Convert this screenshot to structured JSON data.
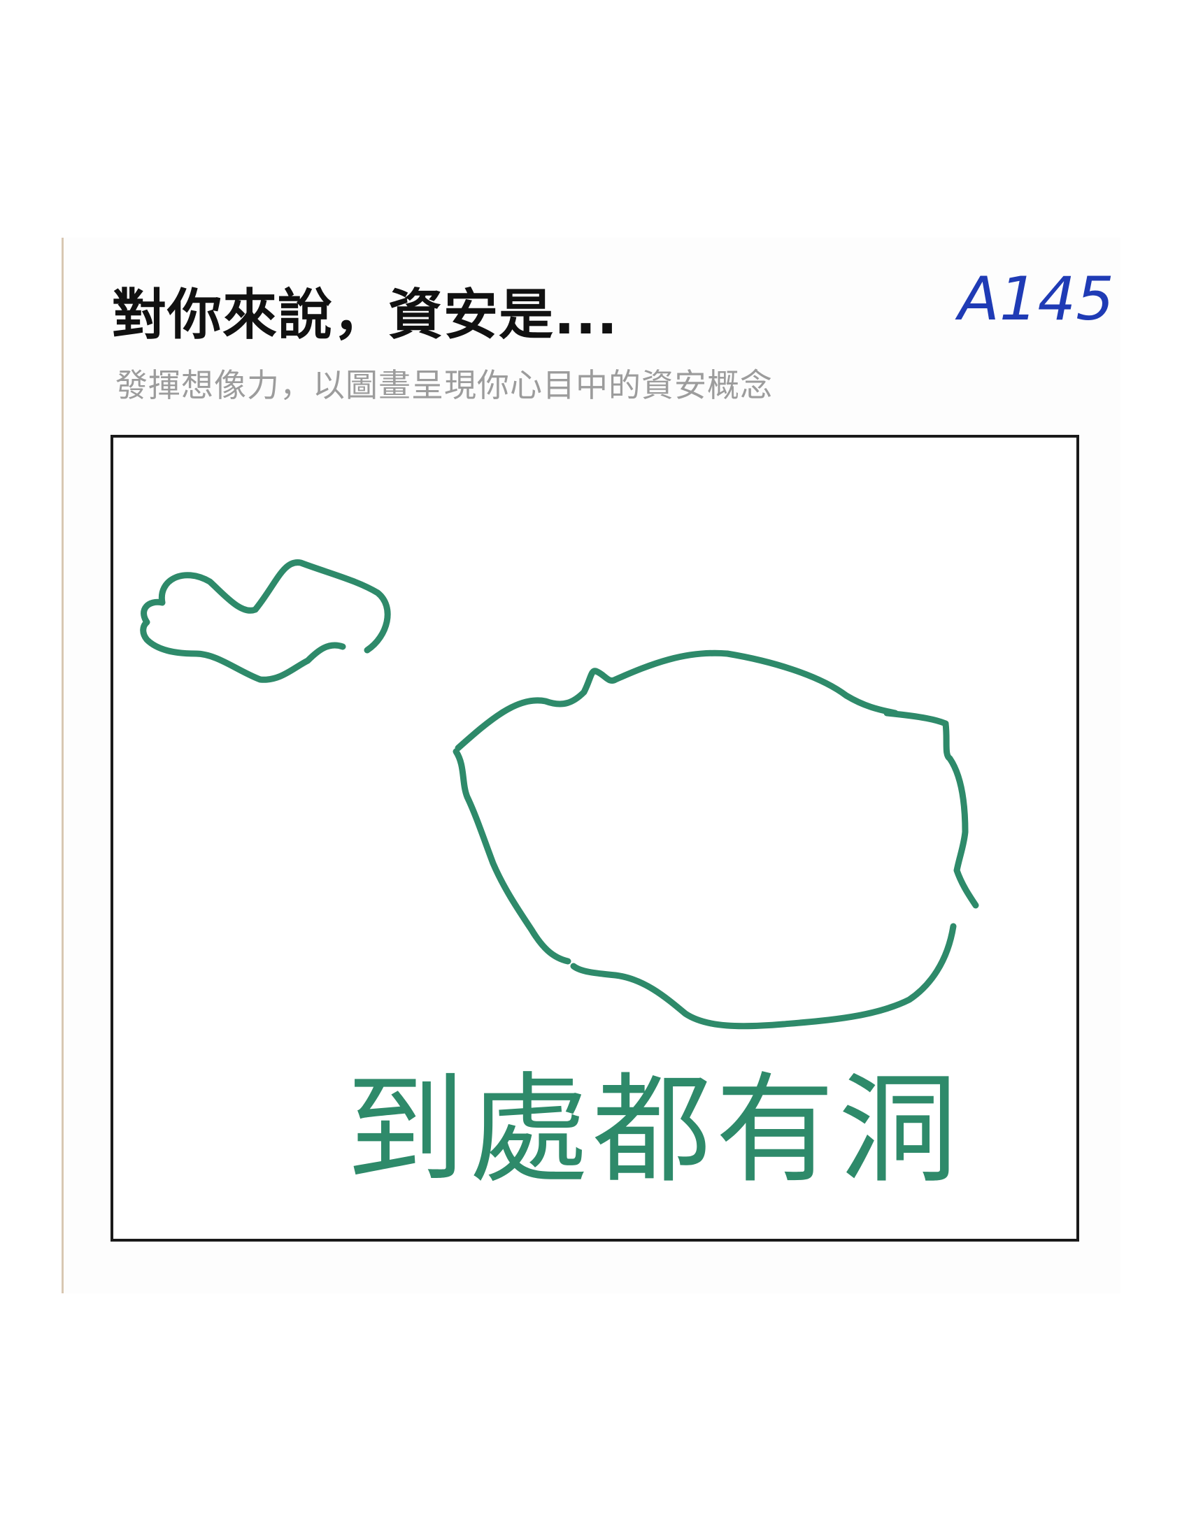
{
  "card": {
    "title": "對你來說，資安是...",
    "subtitle": "發揮想像力，以圖畫呈現你心目中的資安概念",
    "code": "A145",
    "caption": "到處都有洞"
  },
  "colors": {
    "title": "#111111",
    "subtitle": "#9c9c9c",
    "code_ink": "#1f3bb5",
    "drawing_ink": "#2e8a6a",
    "frame": "#1a1a1a"
  }
}
